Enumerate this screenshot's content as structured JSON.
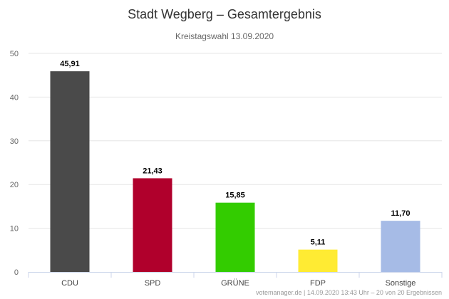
{
  "chart_data": {
    "type": "bar",
    "title": "Stadt Wegberg – Gesamtergebnis",
    "subtitle": "Kreistagswahl 13.09.2020",
    "categories": [
      "CDU",
      "SPD",
      "GRÜNE",
      "FDP",
      "Sonstige"
    ],
    "values": [
      45.91,
      21.43,
      15.85,
      5.11,
      11.7
    ],
    "value_labels": [
      "45,91",
      "21,43",
      "15,85",
      "5,11",
      "11,70"
    ],
    "colors": [
      "#4a4a4a",
      "#b0002c",
      "#33cc00",
      "#ffeb33",
      "#a6bbe6"
    ],
    "ylim": [
      0,
      50
    ],
    "yticks": [
      0,
      10,
      20,
      30,
      40,
      50
    ],
    "grid": true,
    "legend": "none"
  },
  "credits": "votemanager.de | 14.09.2020 13:43 Uhr – 20 von 20 Ergebnissen"
}
